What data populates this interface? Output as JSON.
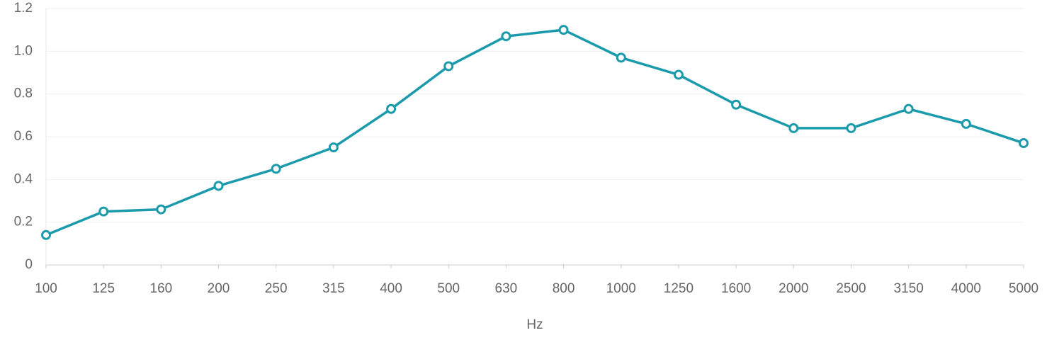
{
  "chart_data": {
    "type": "line",
    "x_label": "Hz",
    "categories": [
      "100",
      "125",
      "160",
      "200",
      "250",
      "315",
      "400",
      "500",
      "630",
      "800",
      "1000",
      "1250",
      "1600",
      "2000",
      "2500",
      "3150",
      "4000",
      "5000"
    ],
    "values": [
      0.14,
      0.25,
      0.26,
      0.37,
      0.45,
      0.55,
      0.73,
      0.93,
      1.07,
      1.1,
      0.97,
      0.89,
      0.75,
      0.64,
      0.64,
      0.73,
      0.66,
      0.57
    ],
    "color": "#1a9aaa",
    "ylim": [
      0,
      1.2
    ],
    "yticks": [
      0,
      0.2,
      0.4,
      0.6,
      0.8,
      {
        "value": 1,
        "label": "1.0"
      },
      1.2
    ],
    "grid": true
  }
}
